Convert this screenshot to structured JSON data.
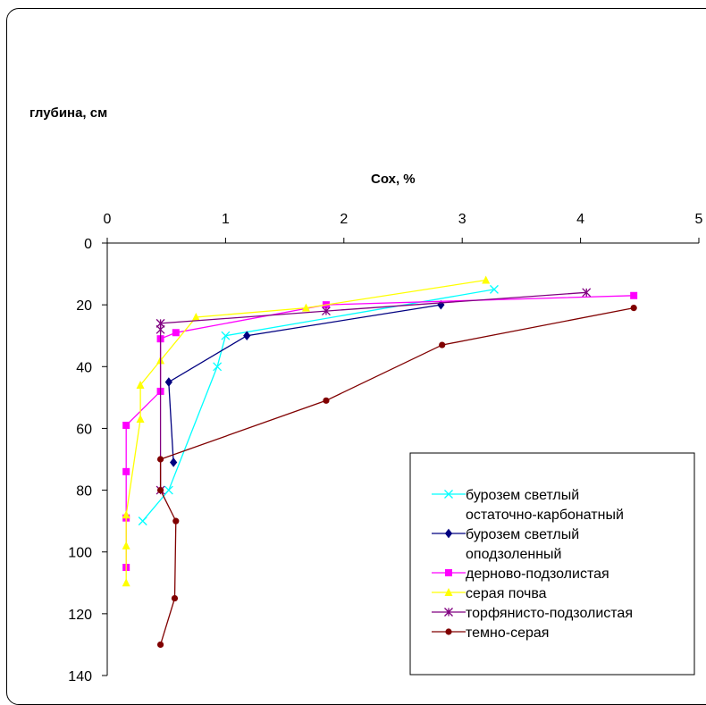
{
  "chart_data": {
    "type": "line",
    "title": "",
    "ylabel": "глубина, см",
    "xlabel": "Сох, %",
    "x_axis_position": "top",
    "y_axis_inverted": true,
    "xlim": [
      0,
      5
    ],
    "ylim": [
      0,
      140
    ],
    "x_ticks": [
      "0",
      "1",
      "2",
      "3",
      "4",
      "5"
    ],
    "y_ticks": [
      "0",
      "20",
      "40",
      "60",
      "80",
      "100",
      "120",
      "140"
    ],
    "grid": false,
    "legend_position": "bottom-right",
    "series": [
      {
        "name": "бурозем светлый остаточно-карбонатный",
        "legend_lines": [
          "бурозем светлый",
          "остаточно-карбонатный"
        ],
        "color": "#00FFFF",
        "marker": "x",
        "points": [
          [
            3.27,
            15
          ],
          [
            1.0,
            30
          ],
          [
            0.93,
            40
          ],
          [
            0.52,
            80
          ],
          [
            0.3,
            90
          ]
        ]
      },
      {
        "name": "бурозем светлый оподзоленный",
        "legend_lines": [
          "бурозем светлый",
          "оподзоленный"
        ],
        "color": "#000080",
        "marker": "diamond",
        "points": [
          [
            2.82,
            20
          ],
          [
            1.18,
            30
          ],
          [
            0.52,
            45
          ],
          [
            0.56,
            71
          ]
        ]
      },
      {
        "name": "дерново-подзолистая",
        "legend_lines": [
          "дерново-подзолистая"
        ],
        "color": "#FF00FF",
        "marker": "square",
        "points": [
          [
            4.45,
            17
          ],
          [
            1.85,
            20
          ],
          [
            0.58,
            29
          ],
          [
            0.45,
            31
          ],
          [
            0.45,
            48
          ],
          [
            0.16,
            59
          ],
          [
            0.16,
            74
          ],
          [
            0.16,
            89
          ],
          [
            0.16,
            105
          ]
        ]
      },
      {
        "name": "серая почва",
        "legend_lines": [
          "серая почва"
        ],
        "color": "#FFFF00",
        "marker": "triangle",
        "points": [
          [
            3.2,
            12
          ],
          [
            1.68,
            21
          ],
          [
            0.75,
            24
          ],
          [
            0.45,
            38
          ],
          [
            0.28,
            46
          ],
          [
            0.28,
            57
          ],
          [
            0.16,
            88
          ],
          [
            0.16,
            98
          ],
          [
            0.16,
            110
          ]
        ]
      },
      {
        "name": "торфянисто-подзолистая",
        "legend_lines": [
          "торфянисто-подзолистая"
        ],
        "color": "#800080",
        "marker": "asterisk",
        "points": [
          [
            4.05,
            16
          ],
          [
            1.85,
            22
          ],
          [
            0.45,
            26
          ],
          [
            0.45,
            28
          ],
          [
            0.45,
            80
          ]
        ]
      },
      {
        "name": "темно-серая",
        "legend_lines": [
          "темно-серая"
        ],
        "color": "#800000",
        "marker": "circle",
        "points": [
          [
            4.45,
            21
          ],
          [
            2.83,
            33
          ],
          [
            1.85,
            51
          ],
          [
            0.45,
            70
          ],
          [
            0.45,
            80
          ],
          [
            0.58,
            90
          ],
          [
            0.57,
            115
          ],
          [
            0.45,
            130
          ]
        ]
      }
    ]
  }
}
